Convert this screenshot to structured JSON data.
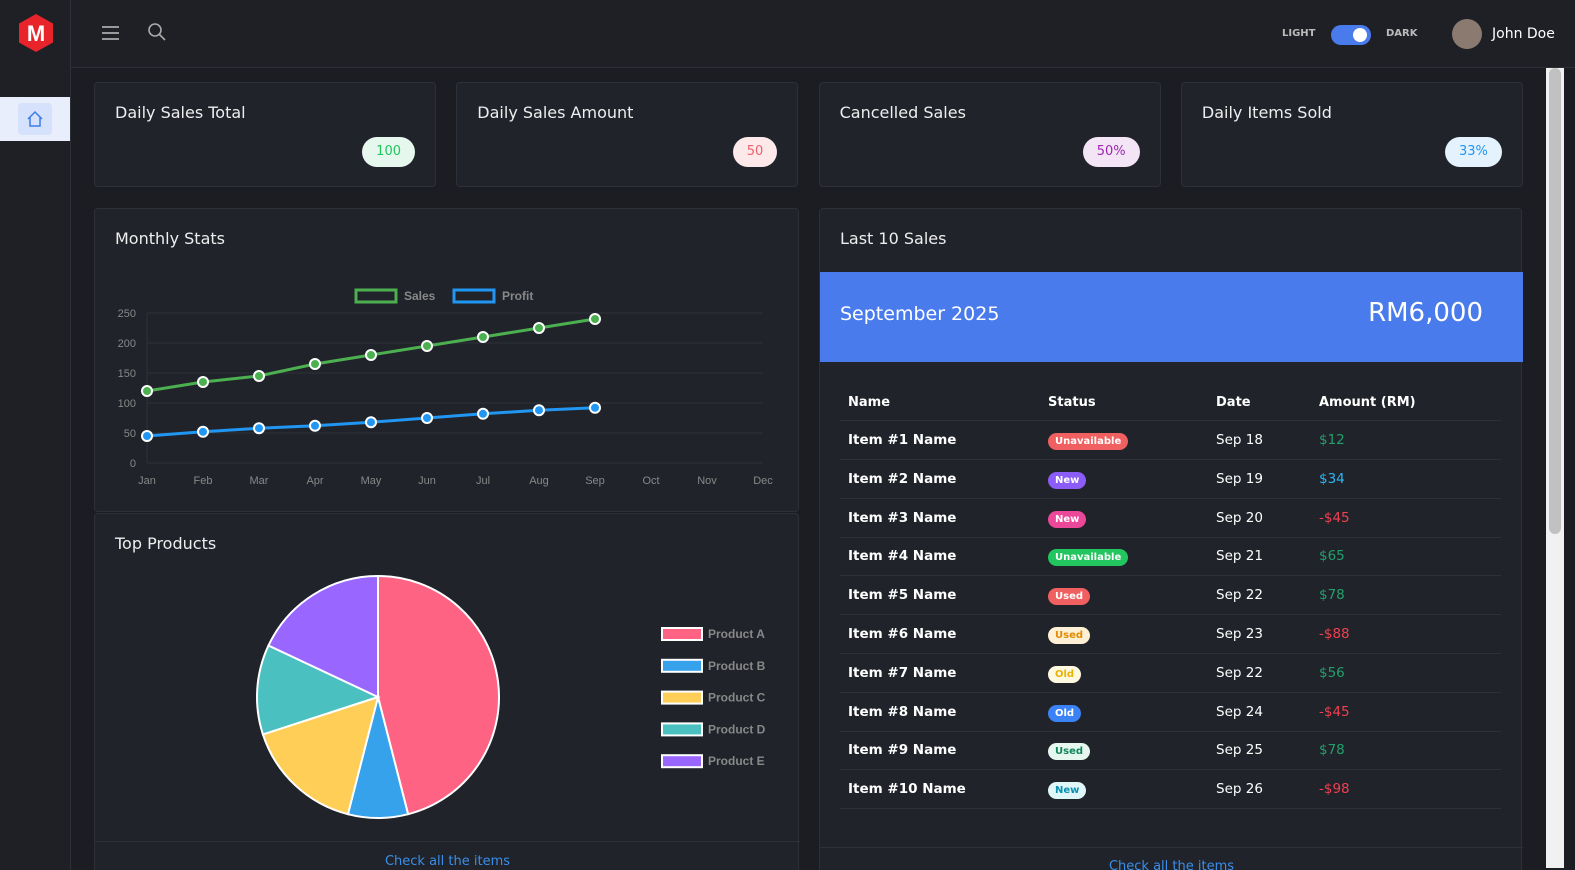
{
  "header": {
    "logo": "M",
    "theme_light": "LIGHT",
    "theme_dark": "DARK",
    "user": "John Doe"
  },
  "stats": [
    {
      "title": "Daily Sales Total",
      "value": "100"
    },
    {
      "title": "Daily Sales Amount",
      "value": "50"
    },
    {
      "title": "Cancelled Sales",
      "value": "50%"
    },
    {
      "title": "Daily Items Sold",
      "value": "33%"
    }
  ],
  "monthly": {
    "title": "Monthly Stats",
    "chart_data": {
      "type": "line",
      "categories": [
        "Jan",
        "Feb",
        "Mar",
        "Apr",
        "May",
        "Jun",
        "Jul",
        "Aug",
        "Sep",
        "Oct",
        "Nov",
        "Dec"
      ],
      "series": [
        {
          "name": "Sales",
          "color": "#4caf50",
          "values": [
            120,
            135,
            145,
            165,
            180,
            195,
            210,
            225,
            240,
            null,
            null,
            null
          ]
        },
        {
          "name": "Profit",
          "color": "#2196f3",
          "values": [
            45,
            52,
            58,
            62,
            68,
            75,
            82,
            88,
            92,
            null,
            null,
            null
          ]
        }
      ],
      "ylim": [
        0,
        250
      ],
      "yticks": [
        0,
        50,
        100,
        150,
        200,
        250
      ],
      "grid": true,
      "legend": "top"
    }
  },
  "top_products": {
    "title": "Top Products",
    "footer": "Check all the items",
    "chart_data": {
      "type": "pie",
      "categories": [
        "Product A",
        "Product B",
        "Product C",
        "Product D",
        "Product E"
      ],
      "values": [
        46,
        8,
        16,
        12,
        18
      ],
      "colors": [
        "#ff6384",
        "#36a2eb",
        "#ffce56",
        "#4bc0c0",
        "#9966ff"
      ],
      "legend": "right"
    }
  },
  "sales": {
    "title": "Last 10 Sales",
    "month": "September 2025",
    "total": "RM6,000",
    "columns": [
      "Name",
      "Status",
      "Date",
      "Amount (RM)"
    ],
    "rows": [
      [
        "Item #1 Name",
        "Unavailable",
        "Sep 18",
        "$12"
      ],
      [
        "Item #2 Name",
        "New",
        "Sep 19",
        "$34"
      ],
      [
        "Item #3 Name",
        "New",
        "Sep 20",
        "-$45"
      ],
      [
        "Item #4 Name",
        "Unavailable",
        "Sep 21",
        "$65"
      ],
      [
        "Item #5 Name",
        "Used",
        "Sep 22",
        "$78"
      ],
      [
        "Item #6 Name",
        "Used",
        "Sep 23",
        "-$88"
      ],
      [
        "Item #7 Name",
        "Old",
        "Sep 22",
        "$56"
      ],
      [
        "Item #8 Name",
        "Old",
        "Sep 24",
        "-$45"
      ],
      [
        "Item #9 Name",
        "Used",
        "Sep 25",
        "$78"
      ],
      [
        "Item #10 Name",
        "New",
        "Sep 26",
        "-$98"
      ]
    ],
    "footer": "Check all the items"
  }
}
